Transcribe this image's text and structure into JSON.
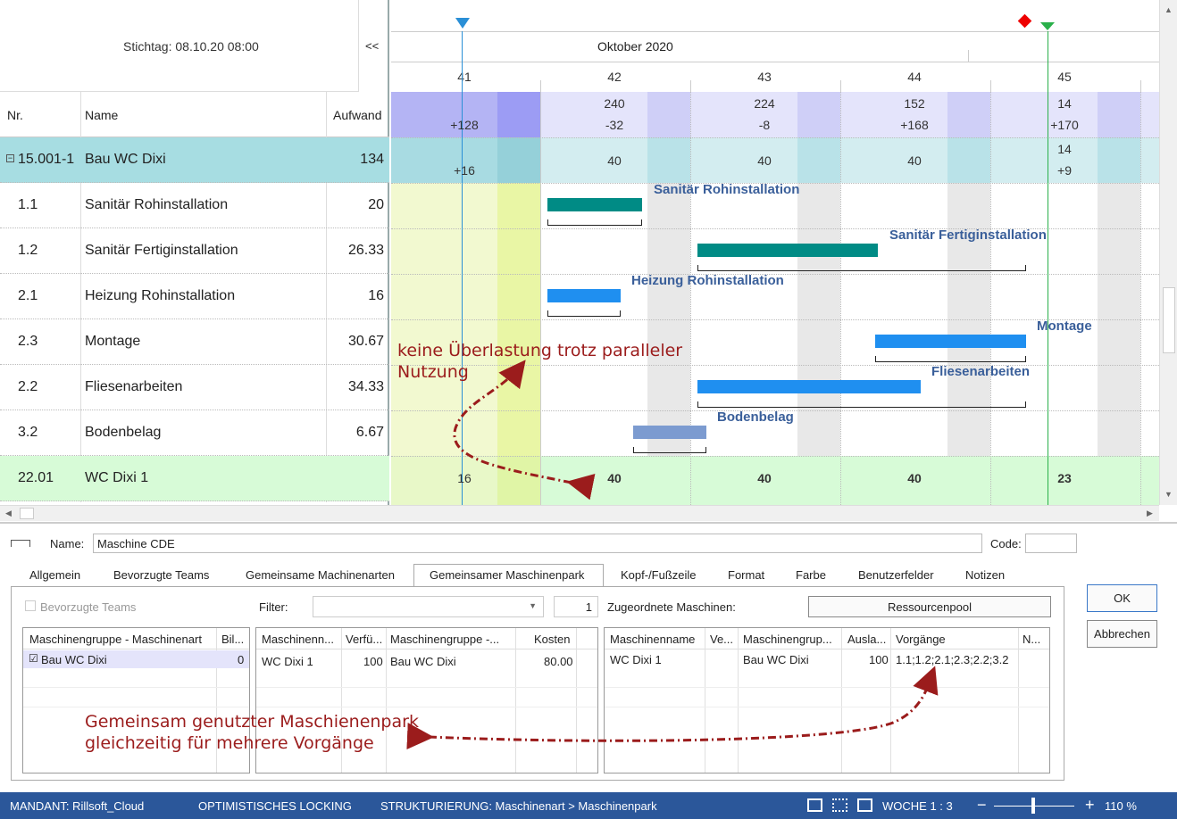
{
  "header": {
    "stichtag": "Stichtag: 08.10.20 08:00",
    "collapse": "<<",
    "month": "Oktober 2020",
    "weeks": [
      "41",
      "42",
      "43",
      "44",
      "45"
    ]
  },
  "columns": {
    "nr": "Nr.",
    "name": "Name",
    "aufwand": "Aufwand"
  },
  "rows": [
    {
      "nr": "15.001-1",
      "name": "Bau WC Dixi",
      "aufwand": "134"
    },
    {
      "nr": "1.1",
      "name": "Sanitär Rohinstallation",
      "aufwand": "20"
    },
    {
      "nr": "1.2",
      "name": "Sanitär Fertiginstallation",
      "aufwand": "26.33"
    },
    {
      "nr": "2.1",
      "name": "Heizung Rohinstallation",
      "aufwand": "16"
    },
    {
      "nr": "2.3",
      "name": "Montage",
      "aufwand": "30.67"
    },
    {
      "nr": "2.2",
      "name": "Fliesenarbeiten",
      "aufwand": "34.33"
    },
    {
      "nr": "3.2",
      "name": "Bodenbelag",
      "aufwand": "6.67"
    },
    {
      "nr": "22.01",
      "name": "WC Dixi 1",
      "aufwand": ""
    }
  ],
  "capacity": {
    "top": [
      "",
      "240",
      "224",
      "152",
      "14"
    ],
    "bottom": [
      "+128",
      "-32",
      "-8",
      "+168",
      "+170"
    ],
    "group": [
      "+16",
      "40",
      "40",
      "40",
      "14"
    ],
    "group_extra": "+9",
    "machine": [
      "16",
      "40",
      "40",
      "40",
      "23"
    ]
  },
  "bars": {
    "sanitaer_roh": "Sanitär Rohinstallation",
    "sanitaer_fertig": "Sanitär Fertiginstallation",
    "heizung": "Heizung Rohinstallation",
    "montage": "Montage",
    "fliesen": "Fliesenarbeiten",
    "boden": "Bodenbelag"
  },
  "annotations": {
    "a1_l1": "keine Überlastung trotz paralleler",
    "a1_l2": "Nutzung",
    "a2_l1": "Gemeinsam genutzter Maschienenpark",
    "a2_l2": "gleichzeitig für mehrere Vorgänge"
  },
  "detail": {
    "name_label": "Name:",
    "name_value": "Maschine CDE",
    "code_label": "Code:",
    "tabs": [
      "Allgemein",
      "Bevorzugte Teams",
      "Gemeinsame Machinenarten",
      "Gemeinsamer Maschinenpark",
      "Kopf-/Fußzeile",
      "Format",
      "Farbe",
      "Benutzerfelder",
      "Notizen"
    ],
    "bevorzugte": "Bevorzugte Teams",
    "filter": "Filter:",
    "filter_num": "1",
    "zugeordnete": "Zugeordnete Maschinen:",
    "pool": "Ressourcenpool",
    "ok": "OK",
    "cancel": "Abbrechen",
    "p1": {
      "h1": "Maschinengruppe - Maschinenart",
      "h2": "Bil...",
      "r1": "Bau WC Dixi",
      "r2": "0"
    },
    "p2": {
      "h1": "Maschinenn...",
      "h2": "Verfü...",
      "h3": "Maschinengruppe -...",
      "h4": "Kosten",
      "r1": "WC Dixi 1",
      "r2": "100",
      "r3": "Bau WC Dixi",
      "r4": "80.00"
    },
    "p3": {
      "h1": "Maschinenname",
      "h2": "Ve...",
      "h3": "Maschinengrup...",
      "h4": "Ausla...",
      "h5": "Vorgänge",
      "h6": "N...",
      "r1": "WC Dixi 1",
      "r3": "Bau WC Dixi",
      "r4": "100",
      "r5": "1.1;1.2;2.1;2.3;2.2;3.2"
    }
  },
  "status": {
    "mandant": "MANDANT: Rillsoft_Cloud",
    "lock": "OPTIMISTISCHES LOCKING",
    "struct": "STRUKTURIERUNG: Maschinenart > Maschinenpark",
    "woche": "WOCHE 1 : 3",
    "minus": "−",
    "plus": "+",
    "zoom": "110 %"
  }
}
